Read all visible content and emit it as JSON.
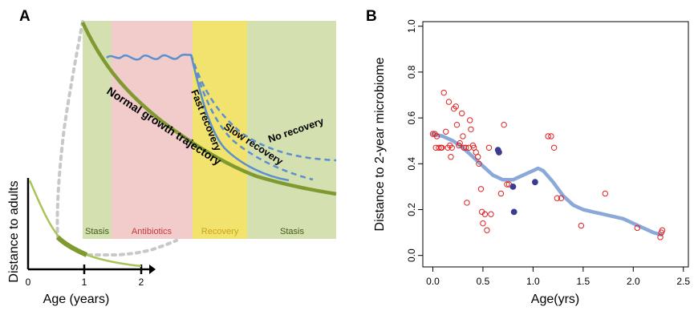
{
  "panels": {
    "a": "A",
    "b": "B"
  },
  "chart_data": [
    {
      "type": "line",
      "panel": "A",
      "inset": {
        "ylabel": "Distance to adults",
        "xlabel": "Age (years)",
        "x_ticks": [
          "0",
          "1",
          "2"
        ],
        "xlim": [
          0,
          2.2
        ]
      },
      "phases": [
        {
          "label": "Stasis",
          "color": "#d5e0b0",
          "text_color": "#3f5a1a"
        },
        {
          "label": "Antibiotics",
          "color": "#f2cccb",
          "text_color": "#c33a3a"
        },
        {
          "label": "Recovery",
          "color": "#f2e36e",
          "text_color": "#c9a41a"
        },
        {
          "label": "Stasis",
          "color": "#d5e0b0",
          "text_color": "#3f5a1a"
        }
      ],
      "curve_labels": {
        "normal": "Normal growth trajectory",
        "fast": "Fast recovery",
        "slow": "Slow recovery",
        "none": "No recovery"
      },
      "colors": {
        "normal": "#7f9a31",
        "inset": "#a9c55a",
        "perturbed": "#5b8fce",
        "zoom": "#c8c8c8"
      }
    },
    {
      "type": "scatter",
      "panel": "B",
      "xlabel": "Age(yrs)",
      "ylabel": "Distance to 2-year microbiome",
      "xlim": [
        -0.1,
        2.55
      ],
      "ylim": [
        -0.05,
        1.02
      ],
      "x_ticks": [
        "0.0",
        "0.5",
        "1.0",
        "1.5",
        "2.0",
        "2.5"
      ],
      "y_ticks": [
        "0.0",
        "0.2",
        "0.4",
        "0.6",
        "0.8",
        "1.0"
      ],
      "colors": {
        "open": "#e02020",
        "filled": "#3b3b8f",
        "smooth": "#8aa8d8"
      },
      "series": [
        {
          "marker": "open-circle",
          "points": [
            [
              0.0,
              0.53
            ],
            [
              0.02,
              0.53
            ],
            [
              0.04,
              0.52
            ],
            [
              0.03,
              0.47
            ],
            [
              0.06,
              0.47
            ],
            [
              0.08,
              0.47
            ],
            [
              0.09,
              0.47
            ],
            [
              0.11,
              0.71
            ],
            [
              0.13,
              0.54
            ],
            [
              0.15,
              0.47
            ],
            [
              0.16,
              0.67
            ],
            [
              0.17,
              0.48
            ],
            [
              0.18,
              0.43
            ],
            [
              0.19,
              0.47
            ],
            [
              0.21,
              0.64
            ],
            [
              0.23,
              0.65
            ],
            [
              0.24,
              0.57
            ],
            [
              0.26,
              0.48
            ],
            [
              0.27,
              0.49
            ],
            [
              0.29,
              0.62
            ],
            [
              0.3,
              0.52
            ],
            [
              0.31,
              0.47
            ],
            [
              0.33,
              0.47
            ],
            [
              0.34,
              0.23
            ],
            [
              0.36,
              0.47
            ],
            [
              0.37,
              0.59
            ],
            [
              0.38,
              0.55
            ],
            [
              0.4,
              0.48
            ],
            [
              0.41,
              0.47
            ],
            [
              0.43,
              0.45
            ],
            [
              0.45,
              0.43
            ],
            [
              0.46,
              0.4
            ],
            [
              0.48,
              0.29
            ],
            [
              0.49,
              0.19
            ],
            [
              0.5,
              0.14
            ],
            [
              0.52,
              0.18
            ],
            [
              0.54,
              0.11
            ],
            [
              0.56,
              0.47
            ],
            [
              0.58,
              0.18
            ],
            [
              0.68,
              0.27
            ],
            [
              0.71,
              0.57
            ],
            [
              0.74,
              0.31
            ],
            [
              0.76,
              0.31
            ],
            [
              1.15,
              0.52
            ],
            [
              1.18,
              0.52
            ],
            [
              1.21,
              0.47
            ],
            [
              1.24,
              0.25
            ],
            [
              1.28,
              0.25
            ],
            [
              1.48,
              0.13
            ],
            [
              1.72,
              0.27
            ],
            [
              2.04,
              0.12
            ],
            [
              2.27,
              0.08
            ],
            [
              2.28,
              0.1
            ],
            [
              2.29,
              0.11
            ]
          ]
        },
        {
          "marker": "filled-circle",
          "points": [
            [
              0.65,
              0.46
            ],
            [
              0.66,
              0.45
            ],
            [
              0.8,
              0.3
            ],
            [
              0.81,
              0.19
            ],
            [
              1.02,
              0.32
            ]
          ]
        },
        {
          "marker": "smooth-line",
          "points": [
            [
              0.0,
              0.53
            ],
            [
              0.1,
              0.52
            ],
            [
              0.2,
              0.5
            ],
            [
              0.3,
              0.47
            ],
            [
              0.4,
              0.43
            ],
            [
              0.5,
              0.39
            ],
            [
              0.6,
              0.35
            ],
            [
              0.7,
              0.33
            ],
            [
              0.8,
              0.33
            ],
            [
              0.9,
              0.35
            ],
            [
              1.0,
              0.37
            ],
            [
              1.05,
              0.38
            ],
            [
              1.1,
              0.37
            ],
            [
              1.2,
              0.32
            ],
            [
              1.3,
              0.26
            ],
            [
              1.4,
              0.22
            ],
            [
              1.5,
              0.2
            ],
            [
              1.6,
              0.19
            ],
            [
              1.7,
              0.18
            ],
            [
              1.8,
              0.17
            ],
            [
              1.9,
              0.16
            ],
            [
              2.0,
              0.14
            ],
            [
              2.1,
              0.12
            ],
            [
              2.2,
              0.1
            ],
            [
              2.28,
              0.09
            ]
          ]
        }
      ]
    }
  ]
}
